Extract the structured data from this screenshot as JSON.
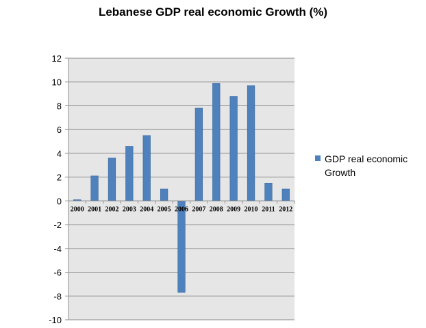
{
  "chart_data": {
    "type": "bar",
    "title": "Lebanese GDP real economic Growth (%)",
    "xlabel": "",
    "ylabel": "",
    "categories": [
      "2000",
      "2001",
      "2002",
      "2003",
      "2004",
      "2005",
      "2006",
      "2007",
      "2008",
      "2009",
      "2010",
      "2011",
      "2012"
    ],
    "series": [
      {
        "name": "GDP real economic Growth",
        "values": [
          0.1,
          2.1,
          3.6,
          4.6,
          5.5,
          1.0,
          -7.7,
          7.8,
          9.9,
          8.8,
          9.7,
          1.5,
          1.0
        ],
        "color": "#4f81bd"
      }
    ],
    "ylim": [
      -10,
      12
    ],
    "yticks": [
      12,
      10,
      8,
      6,
      4,
      2,
      0,
      -2,
      -4,
      -6,
      -8,
      -10
    ],
    "grid": true,
    "plot_background": "#e6e6e6",
    "legend": "right"
  }
}
